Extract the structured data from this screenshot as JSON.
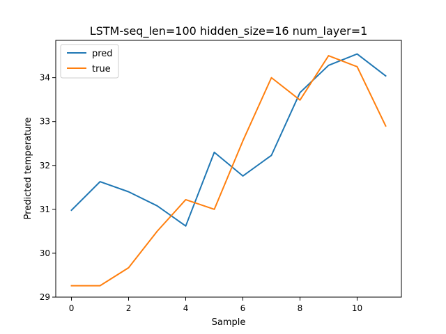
{
  "chart_data": {
    "type": "line",
    "title": "LSTM-seq_len=100 hidden_size=16 num_layer=1",
    "xlabel": "Sample",
    "ylabel": "Predicted temperature",
    "x": [
      0,
      1,
      2,
      3,
      4,
      5,
      6,
      7,
      8,
      9,
      10,
      11
    ],
    "xlim": [
      -0.55,
      11.55
    ],
    "ylim": [
      29.0,
      34.85
    ],
    "xticks": [
      0,
      2,
      4,
      6,
      8,
      10
    ],
    "yticks": [
      29,
      30,
      31,
      32,
      33,
      34
    ],
    "grid": false,
    "legend_position": "top-left",
    "series": [
      {
        "name": "pred",
        "color": "#1f77b4",
        "values": [
          30.98,
          31.63,
          31.4,
          31.08,
          30.62,
          32.3,
          31.76,
          32.23,
          33.66,
          34.28,
          34.54,
          34.04
        ]
      },
      {
        "name": "true",
        "color": "#ff7f0e",
        "values": [
          29.26,
          29.26,
          29.67,
          30.5,
          31.22,
          31.0,
          32.56,
          34.0,
          33.49,
          34.5,
          34.25,
          32.9
        ]
      }
    ]
  }
}
